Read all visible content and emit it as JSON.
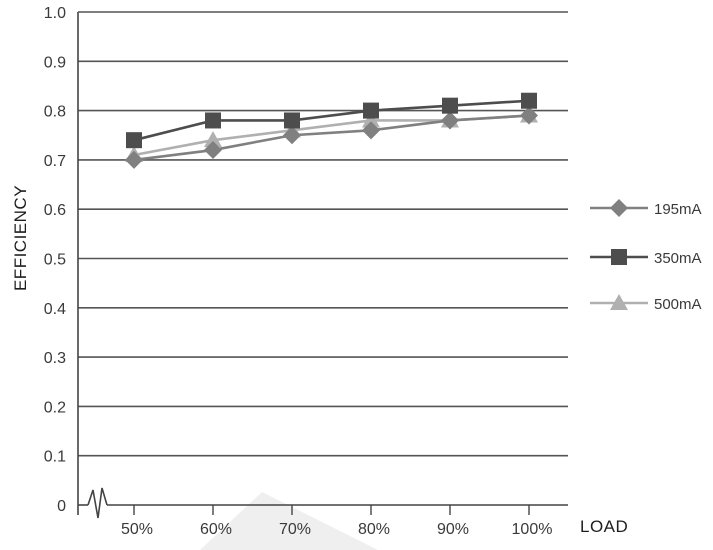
{
  "chart_data": {
    "type": "line",
    "title": "",
    "xlabel": "LOAD",
    "ylabel": "EFFICIENCY",
    "categories": [
      "50%",
      "60%",
      "70%",
      "80%",
      "90%",
      "100%"
    ],
    "ylim": [
      0,
      1.0
    ],
    "yticks": [
      "0",
      "0.1",
      "0.2",
      "0.3",
      "0.4",
      "0.5",
      "0.6",
      "0.7",
      "0.8",
      "0.9",
      "1.0"
    ],
    "grid": true,
    "legend_position": "right",
    "series": [
      {
        "name": "195mA",
        "marker": "diamond",
        "color": "#808080",
        "values": [
          0.7,
          0.72,
          0.75,
          0.76,
          0.78,
          0.79
        ]
      },
      {
        "name": "350mA",
        "marker": "square",
        "color": "#4d4d4d",
        "values": [
          0.74,
          0.78,
          0.78,
          0.8,
          0.81,
          0.82
        ]
      },
      {
        "name": "500mA",
        "marker": "triangle",
        "color": "#b0b0b0",
        "values": [
          0.71,
          0.74,
          0.76,
          0.78,
          0.78,
          0.79
        ]
      }
    ]
  }
}
